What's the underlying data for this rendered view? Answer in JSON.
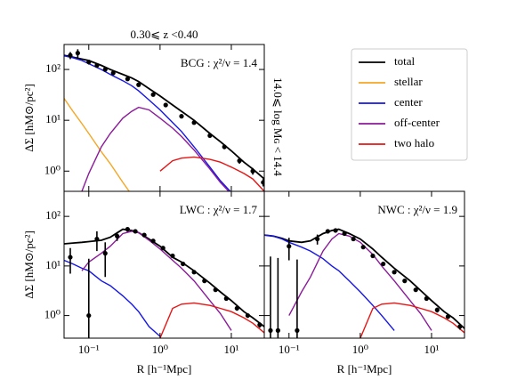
{
  "chart_data": [
    {
      "type": "line",
      "title": "0.30⩽ z <0.40",
      "annotation": "14.0⩽ log Mɢ < 14.4",
      "label": "BCG : χ²/ν = 1.4",
      "ylabel": "ΔΣ [hM⊙/pc²]",
      "log_x": true,
      "log_y": true,
      "xlim": [
        0.045,
        29
      ],
      "ylim": [
        0.4,
        310
      ],
      "xticks": [
        {
          "value": 0.1,
          "label": "10⁻¹"
        },
        {
          "value": 1,
          "label": "10⁰"
        },
        {
          "value": 10,
          "label": "10¹"
        }
      ],
      "yticks": [
        {
          "value": 1,
          "label": "10⁰"
        },
        {
          "value": 10,
          "label": "10¹"
        },
        {
          "value": 100,
          "label": "10²"
        }
      ],
      "x": [
        0.045,
        0.06,
        0.08,
        0.1,
        0.15,
        0.2,
        0.3,
        0.4,
        0.5,
        0.7,
        1,
        1.5,
        2,
        3,
        5,
        7,
        10,
        15,
        20,
        29
      ],
      "series": [
        {
          "name": "total",
          "color": "#000000",
          "values": [
            190,
            175,
            160,
            150,
            120,
            100,
            80,
            68,
            58,
            42,
            30,
            20,
            15,
            10,
            5.5,
            3.8,
            2.5,
            1.5,
            1.1,
            0.7
          ]
        },
        {
          "name": "stellar",
          "color": "#f5a623",
          "values": [
            27,
            15,
            8.6,
            5.5,
            2.4,
            1.4,
            0.6,
            0.34,
            null,
            null,
            null,
            null,
            null,
            null,
            null,
            null,
            null,
            null,
            null,
            null
          ]
        },
        {
          "name": "center",
          "color": "#1515e6",
          "values": [
            185,
            170,
            150,
            130,
            100,
            80,
            60,
            48,
            38,
            25,
            16,
            9,
            6,
            3,
            1.2,
            0.65,
            0.38,
            null,
            null,
            null
          ]
        },
        {
          "name": "off-center",
          "color": "#8b1a9a",
          "values": [
            null,
            null,
            0.4,
            0.9,
            3,
            5.5,
            11,
            15,
            18,
            16,
            11,
            7,
            4.8,
            2.6,
            1.1,
            0.6,
            0.35,
            null,
            null,
            null
          ]
        },
        {
          "name": "two halo",
          "color": "#e61515",
          "values": [
            null,
            null,
            null,
            null,
            null,
            null,
            null,
            null,
            null,
            null,
            1.0,
            1.6,
            1.8,
            1.9,
            1.7,
            1.5,
            1.2,
            0.9,
            0.7,
            0.4
          ]
        }
      ],
      "points": {
        "x": [
          0.055,
          0.07,
          0.1,
          0.13,
          0.17,
          0.22,
          0.35,
          0.5,
          0.8,
          1.2,
          2,
          3,
          5,
          8,
          13,
          20,
          28
        ],
        "values": [
          190,
          210,
          140,
          120,
          100,
          85,
          65,
          50,
          32,
          20,
          12,
          9,
          5,
          3,
          1.6,
          1.0,
          0.6
        ],
        "errors": [
          30,
          40,
          15,
          10,
          8,
          6,
          4,
          3,
          2,
          1.2,
          0.8,
          0.6,
          0.4,
          0.3,
          0.2,
          0.15,
          0.1
        ]
      }
    },
    {
      "type": "line",
      "label": "LWC : χ²/ν = 1.7",
      "ylabel": "ΔΣ [hM⊙/pc²]",
      "xlabel": "R [h⁻¹Mpc]",
      "log_x": true,
      "log_y": true,
      "xlim": [
        0.045,
        29
      ],
      "ylim": [
        0.35,
        320
      ],
      "xticks": [
        {
          "value": 0.1,
          "label": "10⁻¹"
        },
        {
          "value": 1,
          "label": "10⁰"
        },
        {
          "value": 10,
          "label": "10¹"
        }
      ],
      "yticks": [
        {
          "value": 1,
          "label": "10⁰"
        },
        {
          "value": 10,
          "label": "10¹"
        },
        {
          "value": 100,
          "label": "10²"
        }
      ],
      "x": [
        0.045,
        0.06,
        0.08,
        0.1,
        0.15,
        0.2,
        0.3,
        0.4,
        0.5,
        0.7,
        1,
        1.5,
        2,
        3,
        5,
        7,
        10,
        15,
        20,
        29
      ],
      "series": [
        {
          "name": "total",
          "color": "#000000",
          "values": [
            28,
            29,
            30,
            31,
            33,
            38,
            55,
            52,
            47,
            35,
            25,
            15,
            12,
            8,
            4.5,
            3,
            2,
            1.2,
            0.9,
            0.6
          ]
        },
        {
          "name": "center",
          "color": "#1515e6",
          "values": [
            13,
            11,
            9,
            8,
            5,
            4,
            2.5,
            1.7,
            1.2,
            0.6,
            0.38,
            null,
            null,
            null,
            null,
            null,
            null,
            null,
            null,
            null
          ]
        },
        {
          "name": "off-center",
          "color": "#8b1a9a",
          "values": [
            null,
            null,
            8,
            12,
            18,
            25,
            45,
            50,
            47,
            33,
            22,
            13,
            9,
            5,
            2,
            1.1,
            0.5,
            null,
            null,
            null
          ]
        },
        {
          "name": "two halo",
          "color": "#e61515",
          "values": [
            null,
            null,
            null,
            null,
            null,
            null,
            null,
            null,
            null,
            null,
            0.35,
            1.4,
            1.7,
            1.8,
            1.6,
            1.4,
            1.2,
            0.9,
            0.7,
            0.45
          ]
        }
      ],
      "points": {
        "x": [
          0.055,
          0.1,
          0.13,
          0.17,
          0.25,
          0.35,
          0.45,
          0.6,
          0.8,
          1.1,
          1.5,
          2.1,
          3,
          4.2,
          6,
          8.5,
          12,
          17,
          25
        ],
        "values": [
          15,
          1.0,
          35,
          18,
          40,
          55,
          50,
          42,
          32,
          23,
          16,
          11,
          7.5,
          5,
          3.3,
          2.2,
          1.4,
          1,
          0.65
        ],
        "errors": [
          8,
          13,
          15,
          12,
          8,
          6,
          4,
          3,
          2,
          1.5,
          1,
          0.8,
          0.5,
          0.4,
          0.3,
          0.2,
          0.15,
          0.1,
          0.08
        ]
      }
    },
    {
      "type": "line",
      "label": "NWC : χ²/ν = 1.9",
      "xlabel": "R [h⁻¹Mpc]",
      "log_x": true,
      "log_y": true,
      "xlim": [
        0.045,
        29
      ],
      "ylim": [
        0.35,
        320
      ],
      "xticks": [
        {
          "value": 0.1,
          "label": "10⁻¹"
        },
        {
          "value": 1,
          "label": "10⁰"
        },
        {
          "value": 10,
          "label": "10¹"
        }
      ],
      "yticks": [
        {
          "value": 1,
          "label": "10⁰"
        },
        {
          "value": 10,
          "label": "10¹"
        },
        {
          "value": 100,
          "label": "10²"
        }
      ],
      "x": [
        0.045,
        0.06,
        0.08,
        0.1,
        0.15,
        0.2,
        0.3,
        0.4,
        0.5,
        0.7,
        1,
        1.5,
        2,
        3,
        5,
        7,
        10,
        15,
        20,
        29
      ],
      "series": [
        {
          "name": "total",
          "color": "#000000",
          "values": [
            42,
            40,
            36,
            32,
            30,
            32,
            45,
            52,
            55,
            45,
            35,
            22,
            15,
            9,
            5,
            3.2,
            2,
            1.2,
            0.9,
            0.55
          ]
        },
        {
          "name": "center",
          "color": "#1515e6",
          "values": [
            42,
            40,
            35,
            30,
            24,
            20,
            14,
            10,
            8,
            5,
            3,
            1.6,
            1,
            0.5,
            null,
            null,
            null,
            null,
            null,
            null
          ]
        },
        {
          "name": "off-center",
          "color": "#8b1a9a",
          "values": [
            null,
            null,
            null,
            1.0,
            3,
            6,
            20,
            35,
            45,
            40,
            30,
            17,
            10,
            5,
            2,
            1.1,
            0.5,
            null,
            null,
            null
          ]
        },
        {
          "name": "two halo",
          "color": "#e61515",
          "values": [
            null,
            null,
            null,
            null,
            null,
            null,
            null,
            null,
            null,
            null,
            0.35,
            1.4,
            1.7,
            1.8,
            1.6,
            1.4,
            1.2,
            0.9,
            0.7,
            0.45
          ]
        }
      ],
      "points": {
        "x": [
          0.055,
          0.07,
          0.1,
          0.13,
          0.25,
          0.35,
          0.45,
          0.6,
          0.8,
          1.1,
          1.5,
          2.1,
          3,
          4.2,
          6,
          8.5,
          12,
          17,
          25
        ],
        "values": [
          0.5,
          0.5,
          25,
          0.5,
          35,
          50,
          52,
          45,
          35,
          24,
          16,
          11,
          7.5,
          5,
          3.3,
          2.2,
          1.3,
          0.95,
          0.6
        ],
        "errors": [
          15,
          14,
          12,
          13,
          8,
          5,
          4,
          3,
          2,
          1.5,
          1,
          0.8,
          0.5,
          0.4,
          0.3,
          0.2,
          0.15,
          0.1,
          0.08
        ]
      }
    }
  ]
}
